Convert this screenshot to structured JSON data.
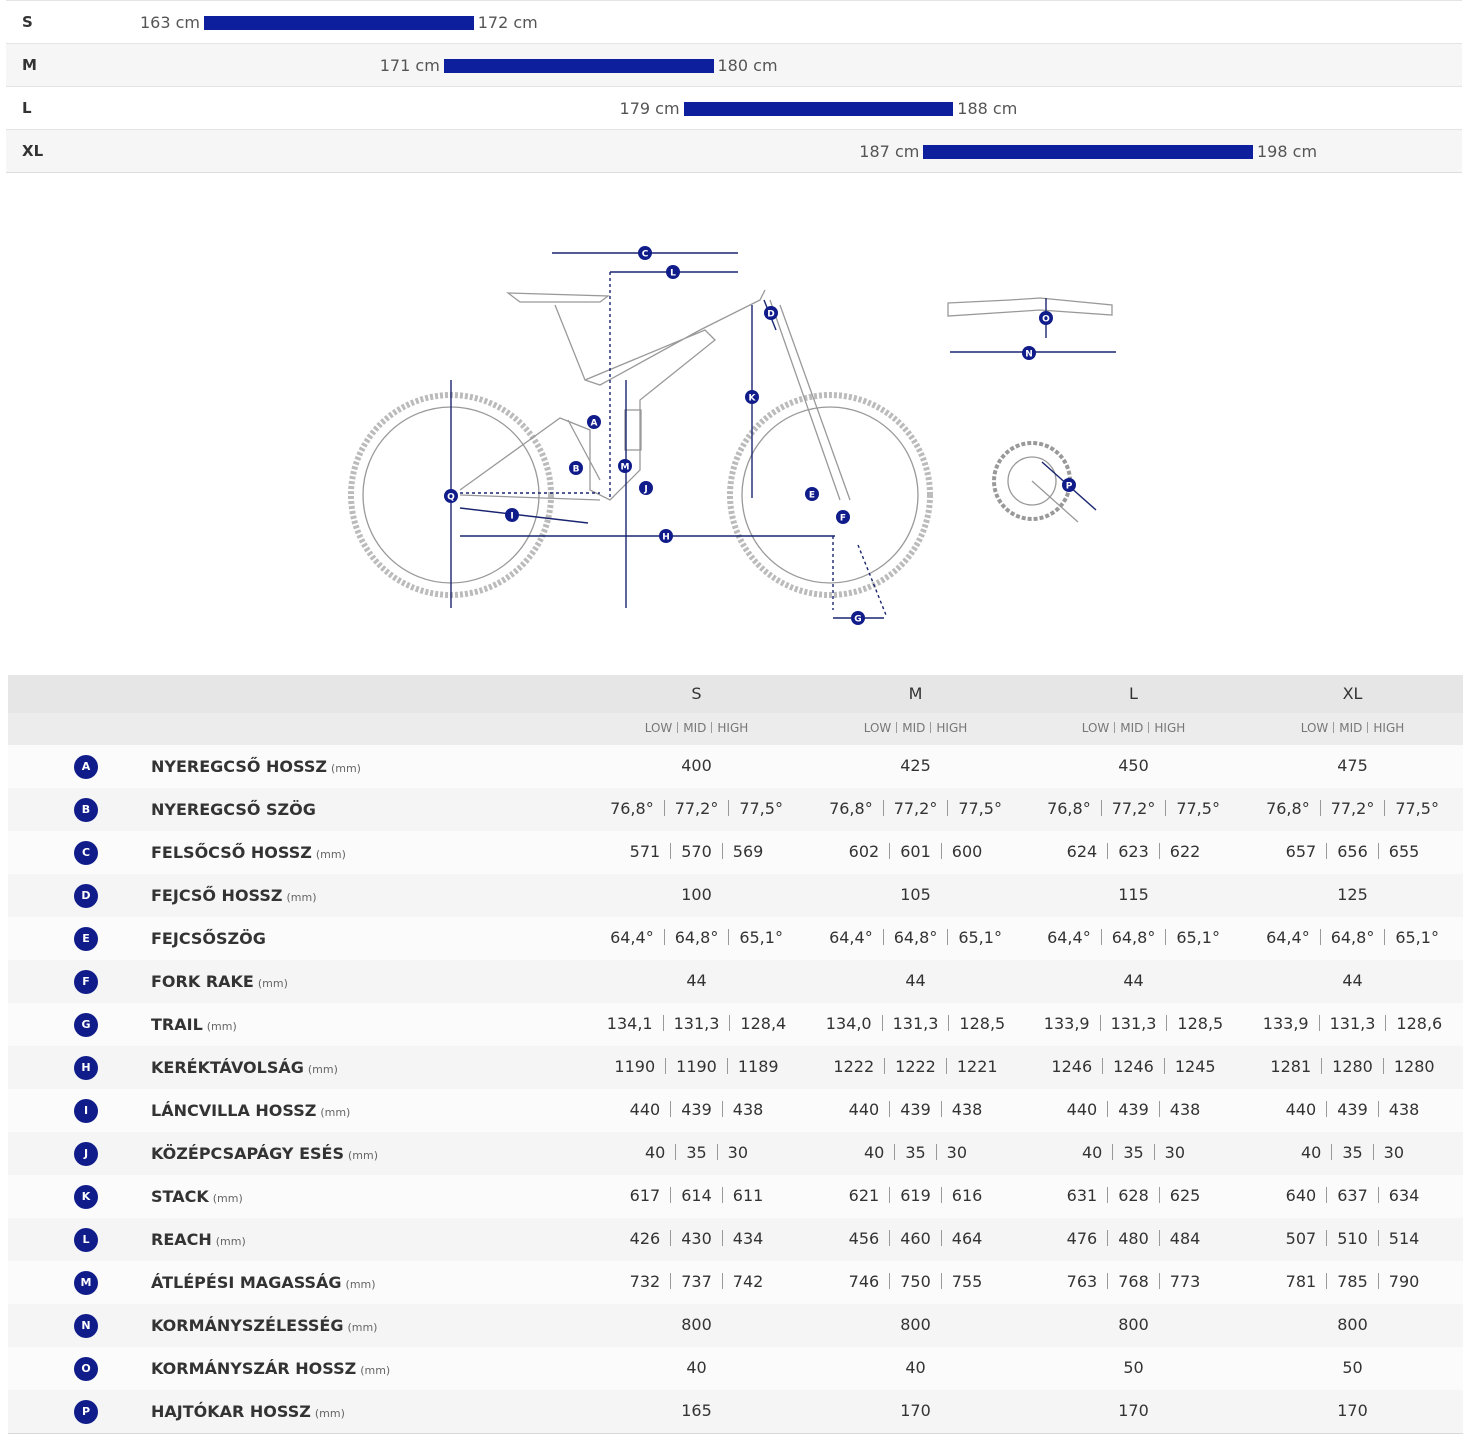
{
  "size_chart": {
    "unit": "cm",
    "rows": [
      {
        "size": "S",
        "min": 163,
        "max": 172
      },
      {
        "size": "M",
        "min": 171,
        "max": 180
      },
      {
        "size": "L",
        "min": 179,
        "max": 188
      },
      {
        "size": "XL",
        "min": 187,
        "max": 198
      }
    ]
  },
  "diagram": {
    "labels": [
      "A",
      "B",
      "C",
      "D",
      "E",
      "F",
      "G",
      "H",
      "I",
      "J",
      "K",
      "L",
      "M",
      "N",
      "O",
      "P",
      "Q"
    ]
  },
  "geometry": {
    "sizes": [
      "S",
      "M",
      "L",
      "XL"
    ],
    "modes": [
      "LOW",
      "MID",
      "HIGH"
    ],
    "unit": "(mm)",
    "rows": [
      {
        "letter": "A",
        "name": "NYEREGCSŐ HOSSZ",
        "has_unit": true,
        "values": [
          "400",
          "425",
          "450",
          "475"
        ]
      },
      {
        "letter": "B",
        "name": "NYEREGCSŐ SZÖG",
        "has_unit": false,
        "values": [
          [
            "76,8°",
            "77,2°",
            "77,5°"
          ],
          [
            "76,8°",
            "77,2°",
            "77,5°"
          ],
          [
            "76,8°",
            "77,2°",
            "77,5°"
          ],
          [
            "76,8°",
            "77,2°",
            "77,5°"
          ]
        ]
      },
      {
        "letter": "C",
        "name": "FELSŐCSŐ HOSSZ",
        "has_unit": true,
        "values": [
          [
            "571",
            "570",
            "569"
          ],
          [
            "602",
            "601",
            "600"
          ],
          [
            "624",
            "623",
            "622"
          ],
          [
            "657",
            "656",
            "655"
          ]
        ]
      },
      {
        "letter": "D",
        "name": "FEJCSŐ HOSSZ",
        "has_unit": true,
        "values": [
          "100",
          "105",
          "115",
          "125"
        ]
      },
      {
        "letter": "E",
        "name": "FEJCSŐSZÖG",
        "has_unit": false,
        "values": [
          [
            "64,4°",
            "64,8°",
            "65,1°"
          ],
          [
            "64,4°",
            "64,8°",
            "65,1°"
          ],
          [
            "64,4°",
            "64,8°",
            "65,1°"
          ],
          [
            "64,4°",
            "64,8°",
            "65,1°"
          ]
        ]
      },
      {
        "letter": "F",
        "name": "FORK RAKE",
        "has_unit": true,
        "values": [
          "44",
          "44",
          "44",
          "44"
        ]
      },
      {
        "letter": "G",
        "name": "TRAIL",
        "has_unit": true,
        "values": [
          [
            "134,1",
            "131,3",
            "128,4"
          ],
          [
            "134,0",
            "131,3",
            "128,5"
          ],
          [
            "133,9",
            "131,3",
            "128,5"
          ],
          [
            "133,9",
            "131,3",
            "128,6"
          ]
        ]
      },
      {
        "letter": "H",
        "name": "KERÉKTÁVOLSÁG",
        "has_unit": true,
        "values": [
          [
            "1190",
            "1190",
            "1189"
          ],
          [
            "1222",
            "1222",
            "1221"
          ],
          [
            "1246",
            "1246",
            "1245"
          ],
          [
            "1281",
            "1280",
            "1280"
          ]
        ]
      },
      {
        "letter": "I",
        "name": "LÁNCVILLA HOSSZ",
        "has_unit": true,
        "values": [
          [
            "440",
            "439",
            "438"
          ],
          [
            "440",
            "439",
            "438"
          ],
          [
            "440",
            "439",
            "438"
          ],
          [
            "440",
            "439",
            "438"
          ]
        ]
      },
      {
        "letter": "J",
        "name": "KÖZÉPCSAPÁGY ESÉS",
        "has_unit": true,
        "values": [
          [
            "40",
            "35",
            "30"
          ],
          [
            "40",
            "35",
            "30"
          ],
          [
            "40",
            "35",
            "30"
          ],
          [
            "40",
            "35",
            "30"
          ]
        ]
      },
      {
        "letter": "K",
        "name": "STACK",
        "has_unit": true,
        "values": [
          [
            "617",
            "614",
            "611"
          ],
          [
            "621",
            "619",
            "616"
          ],
          [
            "631",
            "628",
            "625"
          ],
          [
            "640",
            "637",
            "634"
          ]
        ]
      },
      {
        "letter": "L",
        "name": "REACH",
        "has_unit": true,
        "values": [
          [
            "426",
            "430",
            "434"
          ],
          [
            "456",
            "460",
            "464"
          ],
          [
            "476",
            "480",
            "484"
          ],
          [
            "507",
            "510",
            "514"
          ]
        ]
      },
      {
        "letter": "M",
        "name": "ÁTLÉPÉSI MAGASSÁG",
        "has_unit": true,
        "values": [
          [
            "732",
            "737",
            "742"
          ],
          [
            "746",
            "750",
            "755"
          ],
          [
            "763",
            "768",
            "773"
          ],
          [
            "781",
            "785",
            "790"
          ]
        ]
      },
      {
        "letter": "N",
        "name": "KORMÁNYSZÉLESSÉG",
        "has_unit": true,
        "values": [
          "800",
          "800",
          "800",
          "800"
        ]
      },
      {
        "letter": "O",
        "name": "KORMÁNYSZÁR HOSSZ",
        "has_unit": true,
        "values": [
          "40",
          "40",
          "50",
          "50"
        ]
      },
      {
        "letter": "P",
        "name": "HAJTÓKAR HOSSZ",
        "has_unit": true,
        "values": [
          "165",
          "170",
          "170",
          "170"
        ]
      }
    ]
  }
}
